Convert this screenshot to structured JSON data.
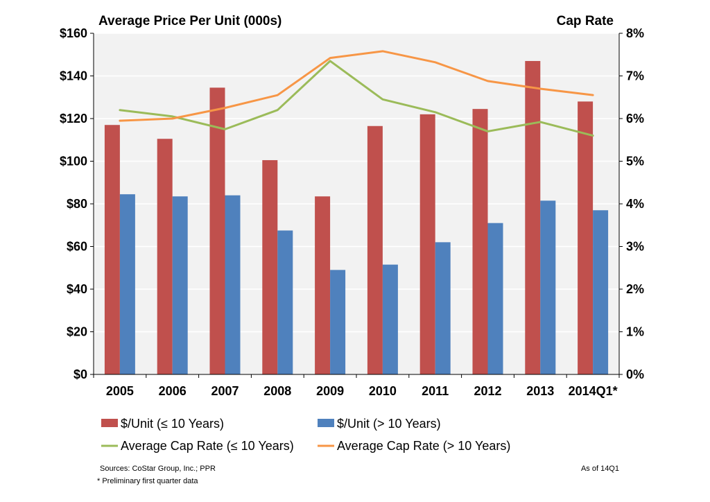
{
  "chart_data": {
    "type": "bar",
    "title_left": "Average Price Per Unit (000s)",
    "title_right": "Cap Rate",
    "categories": [
      "2005",
      "2006",
      "2007",
      "2008",
      "2009",
      "2010",
      "2011",
      "2012",
      "2013",
      "2014Q1*"
    ],
    "y_left": {
      "ylim": [
        0,
        160
      ],
      "ticks": [
        0,
        20,
        40,
        60,
        80,
        100,
        120,
        140,
        160
      ],
      "tick_labels": [
        "$0",
        "$20",
        "$40",
        "$60",
        "$80",
        "$100",
        "$120",
        "$140",
        "$160"
      ]
    },
    "y_right": {
      "ylim": [
        0,
        8
      ],
      "ticks": [
        0,
        1,
        2,
        3,
        4,
        5,
        6,
        7,
        8
      ],
      "tick_labels": [
        "0%",
        "1%",
        "2%",
        "3%",
        "4%",
        "5%",
        "6%",
        "7%",
        "8%"
      ]
    },
    "bar_series": [
      {
        "name": "$/Unit (≤ 10 Years)",
        "color": "#c0504d",
        "values": [
          117,
          110.5,
          134.5,
          100.5,
          83.5,
          116.5,
          122,
          124.5,
          147,
          128
        ]
      },
      {
        "name": "$/Unit (> 10 Years)",
        "color": "#4f81bd",
        "values": [
          84.5,
          83.5,
          84,
          67.5,
          49,
          51.5,
          62,
          71,
          81.5,
          77
        ]
      }
    ],
    "line_series": [
      {
        "name": "Average Cap Rate (≤ 10 Years)",
        "color": "#9bbb59",
        "values": [
          6.2,
          6.05,
          5.75,
          6.2,
          7.35,
          6.45,
          6.15,
          5.7,
          5.92,
          5.6
        ]
      },
      {
        "name": "Average Cap Rate (> 10 Years)",
        "color": "#f79646",
        "values": [
          5.95,
          6.0,
          6.25,
          6.55,
          7.42,
          7.58,
          7.32,
          6.88,
          6.7,
          6.55
        ]
      }
    ],
    "grid": true,
    "legend": "bottom"
  },
  "footer": {
    "sources": "Sources: CoStar Group, Inc.; PPR",
    "as_of": "As of 14Q1",
    "note": "* Preliminary first quarter data"
  },
  "colors": {
    "plot_background": "#f2f2f2",
    "gridline": "#ffffff"
  }
}
